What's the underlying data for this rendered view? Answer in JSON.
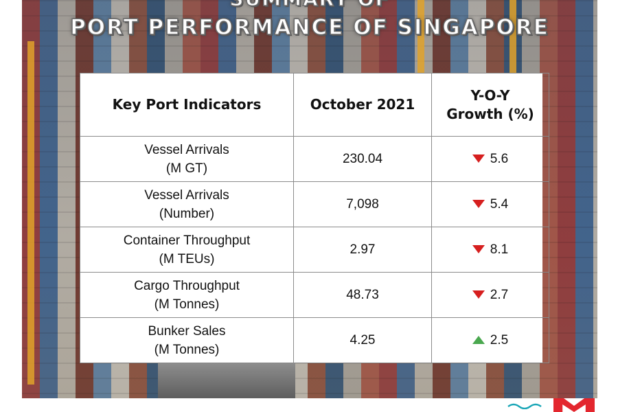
{
  "title": {
    "top": "SUMMARY OF",
    "main": "PORT PERFORMANCE OF SINGAPORE"
  },
  "table": {
    "headers": {
      "indicator": "Key Port Indicators",
      "period": "October 2021",
      "growth_line1": "Y-O-Y",
      "growth_line2": "Growth (%)"
    },
    "rows": [
      {
        "name": "Vessel Arrivals",
        "unit": "(M GT)",
        "value": "230.04",
        "growth": "5.6",
        "direction": "down"
      },
      {
        "name": "Vessel Arrivals",
        "unit": "(Number)",
        "value": "7,098",
        "growth": "5.4",
        "direction": "down"
      },
      {
        "name": "Container Throughput",
        "unit": "(M TEUs)",
        "value": "2.97",
        "growth": "8.1",
        "direction": "down"
      },
      {
        "name": "Cargo Throughput",
        "unit": "(M Tonnes)",
        "value": "48.73",
        "growth": "2.7",
        "direction": "down"
      },
      {
        "name": "Bunker Sales",
        "unit": "(M Tonnes)",
        "value": "4.25",
        "growth": "2.5",
        "direction": "up"
      }
    ]
  },
  "colors": {
    "down_arrow": "#d61f1f",
    "up_arrow": "#4aa84f",
    "logo_red": "#e3262e",
    "logo_teal": "#1aa6b7"
  },
  "icons": {
    "down": "triangle-down-icon",
    "up": "triangle-up-icon",
    "logo": "mpa-logo-icon"
  }
}
